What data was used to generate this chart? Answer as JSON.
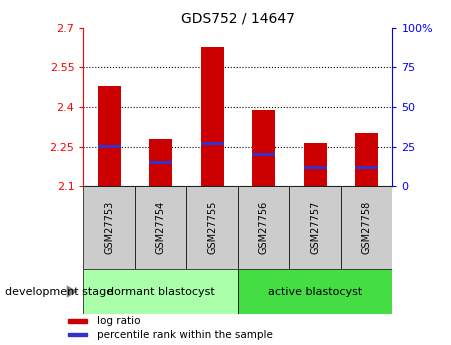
{
  "title": "GDS752 / 14647",
  "samples": [
    "GSM27753",
    "GSM27754",
    "GSM27755",
    "GSM27756",
    "GSM27757",
    "GSM27758"
  ],
  "log_ratio_values": [
    2.48,
    2.28,
    2.625,
    2.39,
    2.265,
    2.3
  ],
  "percentile_ranks": [
    25,
    15,
    27,
    20,
    12,
    12
  ],
  "ymin": 2.1,
  "ymax": 2.7,
  "bar_color": "#cc0000",
  "blue_color": "#3333cc",
  "bar_width": 0.45,
  "groups": [
    {
      "label": "dormant blastocyst",
      "samples": [
        0,
        1,
        2
      ],
      "color": "#aaffaa"
    },
    {
      "label": "active blastocyst",
      "samples": [
        3,
        4,
        5
      ],
      "color": "#44dd44"
    }
  ],
  "stage_label": "development stage",
  "legend_items": [
    {
      "label": "log ratio",
      "color": "#cc0000"
    },
    {
      "label": "percentile rank within the sample",
      "color": "#3333cc"
    }
  ],
  "tick_grid_values": [
    2.25,
    2.4,
    2.55
  ],
  "left_ticks": [
    2.1,
    2.25,
    2.4,
    2.55,
    2.7
  ],
  "right_ticks": [
    0,
    25,
    50,
    75,
    100
  ],
  "bg_color": "#ffffff",
  "xlabel_bg": "#cccccc",
  "title_fontsize": 10,
  "tick_fontsize": 8,
  "label_fontsize": 8
}
